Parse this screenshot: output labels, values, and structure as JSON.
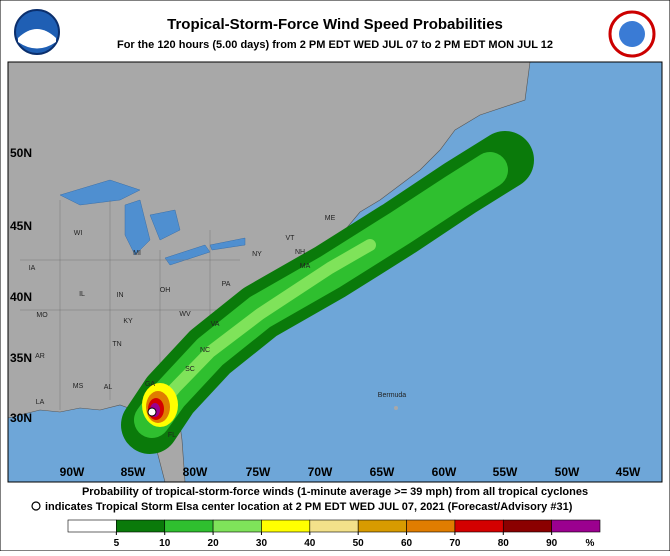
{
  "header": {
    "title": "Tropical-Storm-Force Wind Speed Probabilities",
    "subtitle": "For the 120 hours (5.00 days) from 2 PM EDT WED JUL 07 to 2 PM EDT MON JUL 12"
  },
  "map": {
    "lat_labels": [
      "50N",
      "45N",
      "40N",
      "35N",
      "30N"
    ],
    "lon_labels": [
      "90W",
      "85W",
      "80W",
      "75W",
      "70W",
      "65W",
      "60W",
      "55W",
      "50W",
      "45W"
    ],
    "place_labels": [
      "WI",
      "MI",
      "IA",
      "IL",
      "IN",
      "OH",
      "MO",
      "KY",
      "WV",
      "PA",
      "NY",
      "VT",
      "NH",
      "ME",
      "MA",
      "VA",
      "NC",
      "TN",
      "SC",
      "AR",
      "MS",
      "AL",
      "GA",
      "LA",
      "FL",
      "Bermuda"
    ]
  },
  "footer": {
    "line1": "Probability of tropical-storm-force winds (1-minute average >= 39 mph) from all tropical cyclones",
    "line2": "indicates Tropical Storm Elsa center location at 2 PM EDT WED JUL 07, 2021 (Forecast/Advisory #31)"
  },
  "legend": {
    "ticks": [
      5,
      10,
      20,
      30,
      40,
      50,
      60,
      70,
      80,
      90
    ],
    "unit": "%",
    "colors": [
      "#ffffff",
      "#0a7a0a",
      "#2fbf2f",
      "#7fe35a",
      "#ffff00",
      "#f3e18a",
      "#d89b00",
      "#e07d00",
      "#d40000",
      "#8b0000",
      "#9b008f"
    ]
  }
}
